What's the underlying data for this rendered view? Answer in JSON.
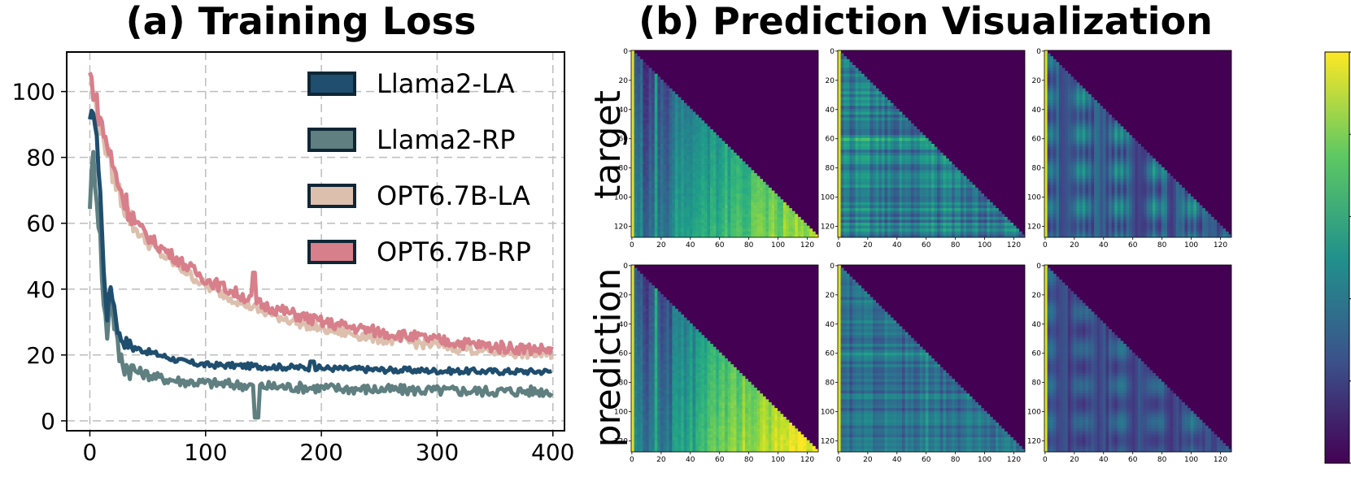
{
  "chart_data": [
    {
      "type": "line",
      "title": "(a) Training Loss",
      "xlabel": "",
      "ylabel": "",
      "xlim": [
        -20,
        410
      ],
      "ylim": [
        -3,
        112
      ],
      "xticks": [
        0,
        100,
        200,
        300,
        400
      ],
      "yticks": [
        0,
        20,
        40,
        60,
        80,
        100
      ],
      "grid": true,
      "legend_position": "top-right",
      "series": [
        {
          "name": "Llama2-LA",
          "color": "#1f4e6e",
          "x": [
            0,
            3,
            6,
            9,
            12,
            15,
            18,
            21,
            25,
            30,
            40,
            50,
            60,
            80,
            100,
            150,
            200,
            250,
            300,
            350,
            400
          ],
          "values": [
            90,
            95,
            85,
            70,
            45,
            32,
            41,
            35,
            26,
            24,
            22,
            21,
            20,
            18,
            17,
            16.5,
            16,
            15.5,
            15.2,
            15,
            15
          ]
        },
        {
          "name": "Llama2-RP",
          "color": "#5f7f80",
          "x": [
            0,
            3,
            6,
            9,
            12,
            15,
            18,
            21,
            25,
            30,
            40,
            50,
            60,
            80,
            100,
            150,
            200,
            250,
            300,
            350,
            400
          ],
          "values": [
            67,
            80,
            68,
            55,
            35,
            27,
            38,
            30,
            20,
            17,
            15,
            14,
            13,
            12,
            11.5,
            10.5,
            10,
            9.5,
            9.2,
            9,
            9
          ]
        },
        {
          "name": "OPT6.7B-LA",
          "color": "#ddbfae",
          "x": [
            0,
            3,
            6,
            10,
            15,
            20,
            30,
            40,
            50,
            60,
            80,
            100,
            150,
            200,
            250,
            300,
            350,
            400
          ],
          "values": [
            103,
            99,
            94,
            88,
            82,
            75,
            65,
            58,
            54,
            51,
            46,
            41,
            33,
            28,
            25,
            23,
            21,
            20
          ]
        },
        {
          "name": "OPT6.7B-RP",
          "color": "#d77f8a",
          "x": [
            0,
            3,
            6,
            10,
            15,
            20,
            30,
            40,
            50,
            60,
            80,
            100,
            150,
            200,
            250,
            300,
            350,
            400
          ],
          "values": [
            105,
            101,
            96,
            90,
            84,
            77,
            67,
            60,
            56,
            53,
            48,
            43,
            35,
            30,
            27,
            24.5,
            22.5,
            21.5
          ]
        }
      ]
    },
    {
      "type": "heatmap",
      "title": "(b) Prediction Visualization",
      "row_labels": [
        "target",
        "prediction"
      ],
      "panels": 6,
      "colormap": "viridis",
      "axis_range": [
        0,
        127
      ],
      "xticks": [
        0,
        20,
        40,
        60,
        80,
        100,
        120
      ],
      "yticks": [
        0,
        20,
        40,
        60,
        80,
        100,
        120
      ],
      "mask": "upper triangle (causal)"
    }
  ],
  "colors": {
    "viridis_dark": "#440154",
    "viridis_mid": "#21918c",
    "viridis_light": "#fde725"
  }
}
